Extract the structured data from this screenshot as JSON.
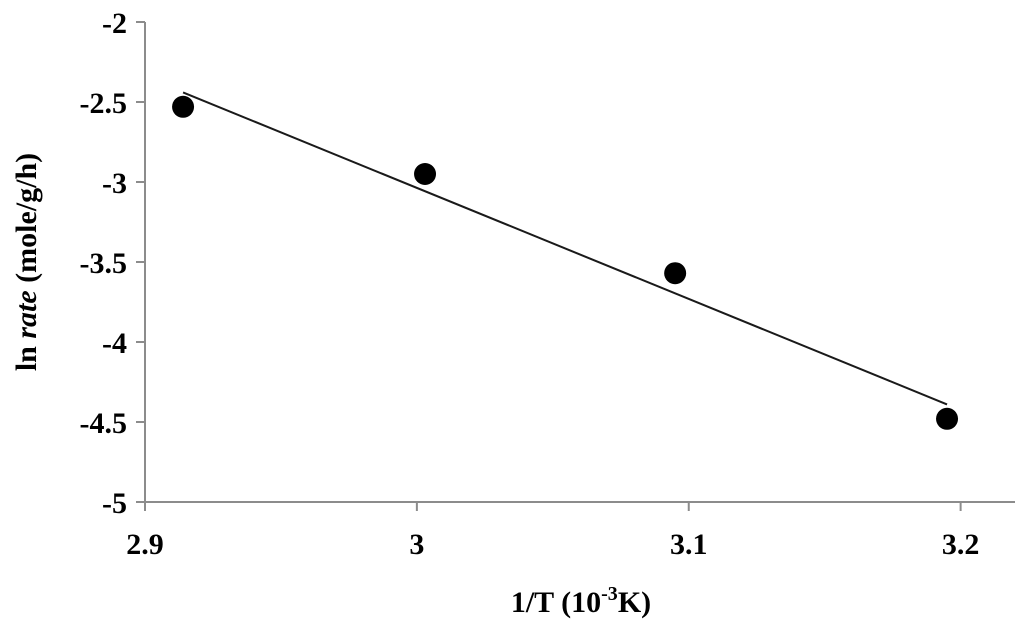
{
  "chart_data": {
    "type": "scatter",
    "title": "",
    "xlabel": {
      "prefix": "1/T (10",
      "superscript": "-3",
      "suffix": "K)"
    },
    "ylabel": {
      "prefix": "ln ",
      "italic": "rate",
      "suffix": " (mole/g/h)"
    },
    "xlim": [
      2.9,
      3.22
    ],
    "ylim": [
      -5,
      -2
    ],
    "xticks": [
      2.9,
      3.0,
      3.1,
      3.2
    ],
    "xtick_labels": [
      "2.9",
      "3",
      "3.1",
      "3.2"
    ],
    "yticks": [
      -2,
      -2.5,
      -3,
      -3.5,
      -4,
      -4.5,
      -5
    ],
    "ytick_labels": [
      "-2",
      "-2.5",
      "-3",
      "-3.5",
      "-4",
      "-4.5",
      "-5"
    ],
    "grid": false,
    "series": [
      {
        "points": [
          {
            "x": 2.914,
            "y": -2.53
          },
          {
            "x": 3.003,
            "y": -2.95
          },
          {
            "x": 3.095,
            "y": -3.57
          },
          {
            "x": 3.195,
            "y": -4.48
          }
        ],
        "marker": "circle",
        "color": "#000000"
      }
    ],
    "trendline": {
      "type": "linear",
      "x": [
        2.914,
        3.195
      ],
      "y": [
        -2.44,
        -4.39
      ],
      "color": "#1a1a1a"
    }
  }
}
